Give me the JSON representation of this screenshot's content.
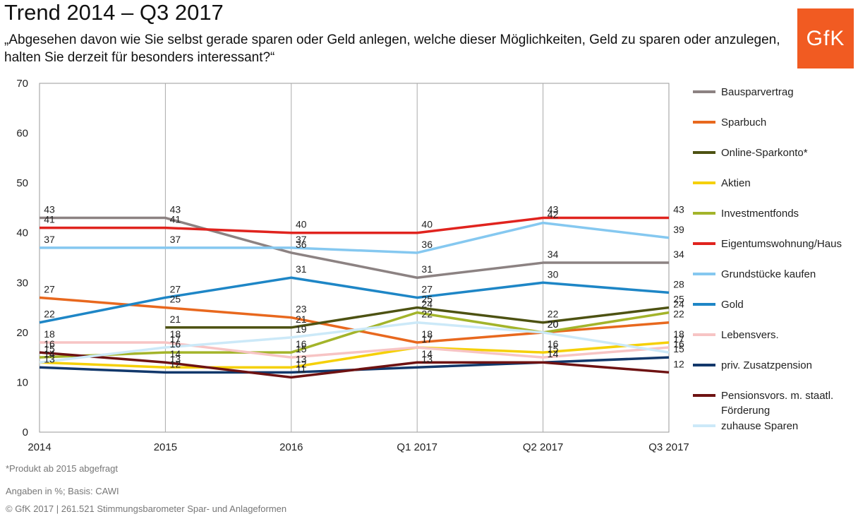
{
  "header": {
    "title": "Trend 2014 – Q3 2017",
    "subtitle": "„Abgesehen davon wie Sie selbst gerade sparen oder Geld anlegen, welche dieser Möglichkeiten, Geld zu sparen oder anzulegen, halten Sie derzeit für besonders interessant?“",
    "logo_text": "GfK",
    "logo_color": "#f15b22"
  },
  "footer": {
    "note": "*Produkt ab 2015 abgefragt",
    "basis": "Angaben in %; Basis: CAWI",
    "copyright": "© GfK 2017 | 261.521 Stimmungsbarometer Spar- und Anlageformen"
  },
  "chart_data": {
    "type": "line",
    "categories": [
      "2014",
      "2015",
      "2016",
      "Q1 2017",
      "Q2 2017",
      "Q3 2017"
    ],
    "ylim": [
      0,
      70
    ],
    "yticks": [
      0,
      10,
      20,
      30,
      40,
      50,
      60,
      70
    ],
    "grid": "vertical lines at categories",
    "legend_position": "right",
    "series": [
      {
        "name": "Bausparvertrag",
        "color": "#8c8282",
        "values": [
          43,
          43,
          36,
          31,
          34,
          34
        ]
      },
      {
        "name": "Sparbuch",
        "color": "#e8681e",
        "values": [
          27,
          25,
          23,
          18,
          20,
          22
        ]
      },
      {
        "name": "Online-Sparkonto*",
        "color": "#4d5212",
        "values": [
          null,
          21,
          21,
          25,
          22,
          25
        ]
      },
      {
        "name": "Aktien",
        "color": "#f5d008",
        "values": [
          14,
          13,
          13,
          17,
          16,
          18
        ]
      },
      {
        "name": "Investmentfonds",
        "color": "#a3b42a",
        "values": [
          15,
          16,
          16,
          24,
          20,
          24
        ]
      },
      {
        "name": "Eigentumswohnung/Haus",
        "color": "#e0231e",
        "values": [
          41,
          41,
          40,
          40,
          43,
          43
        ]
      },
      {
        "name": "Grundstücke kaufen",
        "color": "#85c8f0",
        "values": [
          37,
          37,
          37,
          36,
          42,
          39
        ]
      },
      {
        "name": "Gold",
        "color": "#1e86c6",
        "values": [
          22,
          27,
          31,
          27,
          30,
          28
        ]
      },
      {
        "name": "Lebensvers.",
        "color": "#f7c4c4",
        "values": [
          18,
          18,
          15,
          17,
          15,
          17
        ]
      },
      {
        "name": "priv. Zusatzpension",
        "color": "#12386b",
        "values": [
          13,
          12,
          12,
          13,
          14,
          15
        ]
      },
      {
        "name": "Pensionsvors. m. staatl. Förderung",
        "color": "#6e1212",
        "values": [
          16,
          14,
          11,
          14,
          14,
          12
        ]
      },
      {
        "name": "zuhause Sparen",
        "color": "#cce9f8",
        "values": [
          14,
          17,
          19,
          22,
          20,
          16
        ]
      }
    ]
  }
}
